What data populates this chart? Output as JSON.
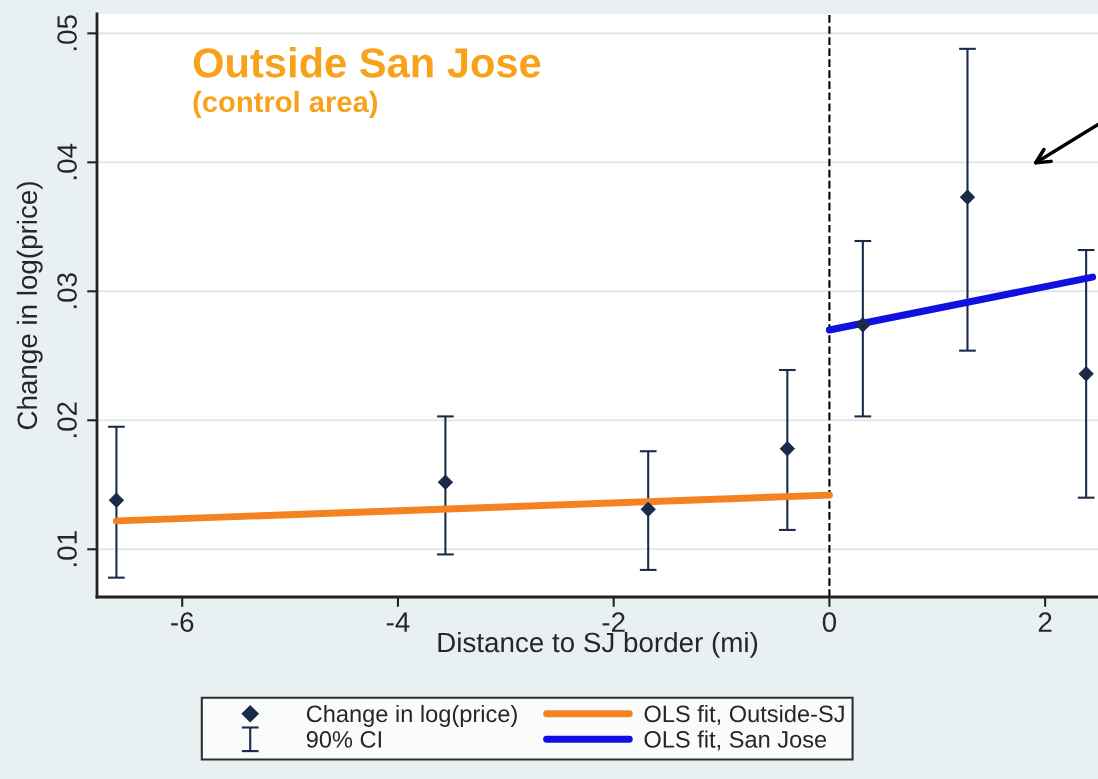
{
  "chart_data": {
    "type": "scatter",
    "xlabel": "Distance to SJ border (mi)",
    "ylabel": "Change in log(price)",
    "xlim": [
      -6.79,
      2.49
    ],
    "ylim": [
      0.0063,
      0.0515
    ],
    "xticks": [
      {
        "value": -6,
        "label": "-6"
      },
      {
        "value": -4,
        "label": "-4"
      },
      {
        "value": -2,
        "label": "-2"
      },
      0,
      2
    ],
    "yticks": [
      {
        "value": 0.01,
        "label": ".01"
      },
      {
        "value": 0.02,
        "label": ".02"
      },
      {
        "value": 0.03,
        "label": ".03"
      },
      {
        "value": 0.04,
        "label": ".04"
      },
      {
        "value": 0.05,
        "label": ".05"
      }
    ],
    "grid": "y",
    "legend": "bottom",
    "series": [
      {
        "name": "Change in log(price)",
        "marker": "diamond",
        "color": "#1a2a4a",
        "x": [
          -6.61,
          -3.56,
          -1.68,
          -0.39,
          0.31,
          1.28,
          2.38
        ],
        "values": [
          0.0138,
          0.0152,
          0.0131,
          0.0178,
          0.0274,
          0.0373,
          0.0236
        ],
        "errors": [
          [
            0.0078,
            0.0195
          ],
          [
            0.0096,
            0.0203
          ],
          [
            0.0084,
            0.0176
          ],
          [
            0.0115,
            0.0239
          ],
          [
            0.0203,
            0.0339
          ],
          [
            0.0254,
            0.0488
          ],
          [
            0.014,
            0.0332
          ]
        ]
      },
      {
        "name": "OLS fit, Outside-SJ",
        "type": "line",
        "color": "#f58220",
        "x": [
          -6.61,
          0
        ],
        "values": [
          0.0122,
          0.0142
        ]
      },
      {
        "name": "OLS fit, San Jose",
        "type": "line",
        "color": "#1010e0",
        "x": [
          0,
          2.44
        ],
        "values": [
          0.027,
          0.0311
        ]
      }
    ],
    "ref_lines": [
      {
        "axis": "x",
        "value": 0,
        "color": "#000000",
        "line_style": "dashed"
      }
    ],
    "annotations": [
      "Outside San Jose",
      "(control area)",
      "90% CI"
    ]
  }
}
